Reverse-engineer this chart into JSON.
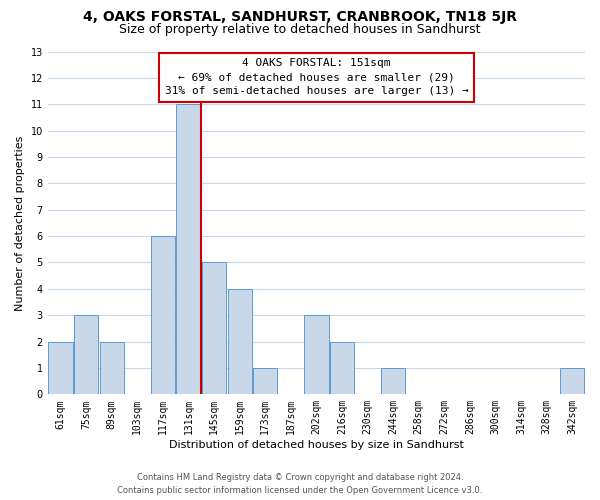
{
  "title": "4, OAKS FORSTAL, SANDHURST, CRANBROOK, TN18 5JR",
  "subtitle": "Size of property relative to detached houses in Sandhurst",
  "xlabel": "Distribution of detached houses by size in Sandhurst",
  "ylabel": "Number of detached properties",
  "categories": [
    "61sqm",
    "75sqm",
    "89sqm",
    "103sqm",
    "117sqm",
    "131sqm",
    "145sqm",
    "159sqm",
    "173sqm",
    "187sqm",
    "202sqm",
    "216sqm",
    "230sqm",
    "244sqm",
    "258sqm",
    "272sqm",
    "286sqm",
    "300sqm",
    "314sqm",
    "328sqm",
    "342sqm"
  ],
  "values": [
    2,
    3,
    2,
    0,
    6,
    11,
    5,
    4,
    1,
    0,
    3,
    2,
    0,
    1,
    0,
    0,
    0,
    0,
    0,
    0,
    1
  ],
  "bar_color": "#c8d8e8",
  "bar_edge_color": "#5b9bd5",
  "reference_line_x": 5.5,
  "reference_line_color": "#cc0000",
  "annotation_title": "4 OAKS FORSTAL: 151sqm",
  "annotation_line1": "← 69% of detached houses are smaller (29)",
  "annotation_line2": "31% of semi-detached houses are larger (13) →",
  "annotation_box_color": "#ffffff",
  "annotation_box_edge_color": "#cc0000",
  "ylim": [
    0,
    13
  ],
  "yticks": [
    0,
    1,
    2,
    3,
    4,
    5,
    6,
    7,
    8,
    9,
    10,
    11,
    12,
    13
  ],
  "footer_line1": "Contains HM Land Registry data © Crown copyright and database right 2024.",
  "footer_line2": "Contains public sector information licensed under the Open Government Licence v3.0.",
  "background_color": "#ffffff",
  "grid_color": "#c8d8e8",
  "title_fontsize": 10,
  "subtitle_fontsize": 9,
  "axis_label_fontsize": 8,
  "tick_fontsize": 7,
  "annotation_fontsize": 8,
  "footer_fontsize": 6
}
